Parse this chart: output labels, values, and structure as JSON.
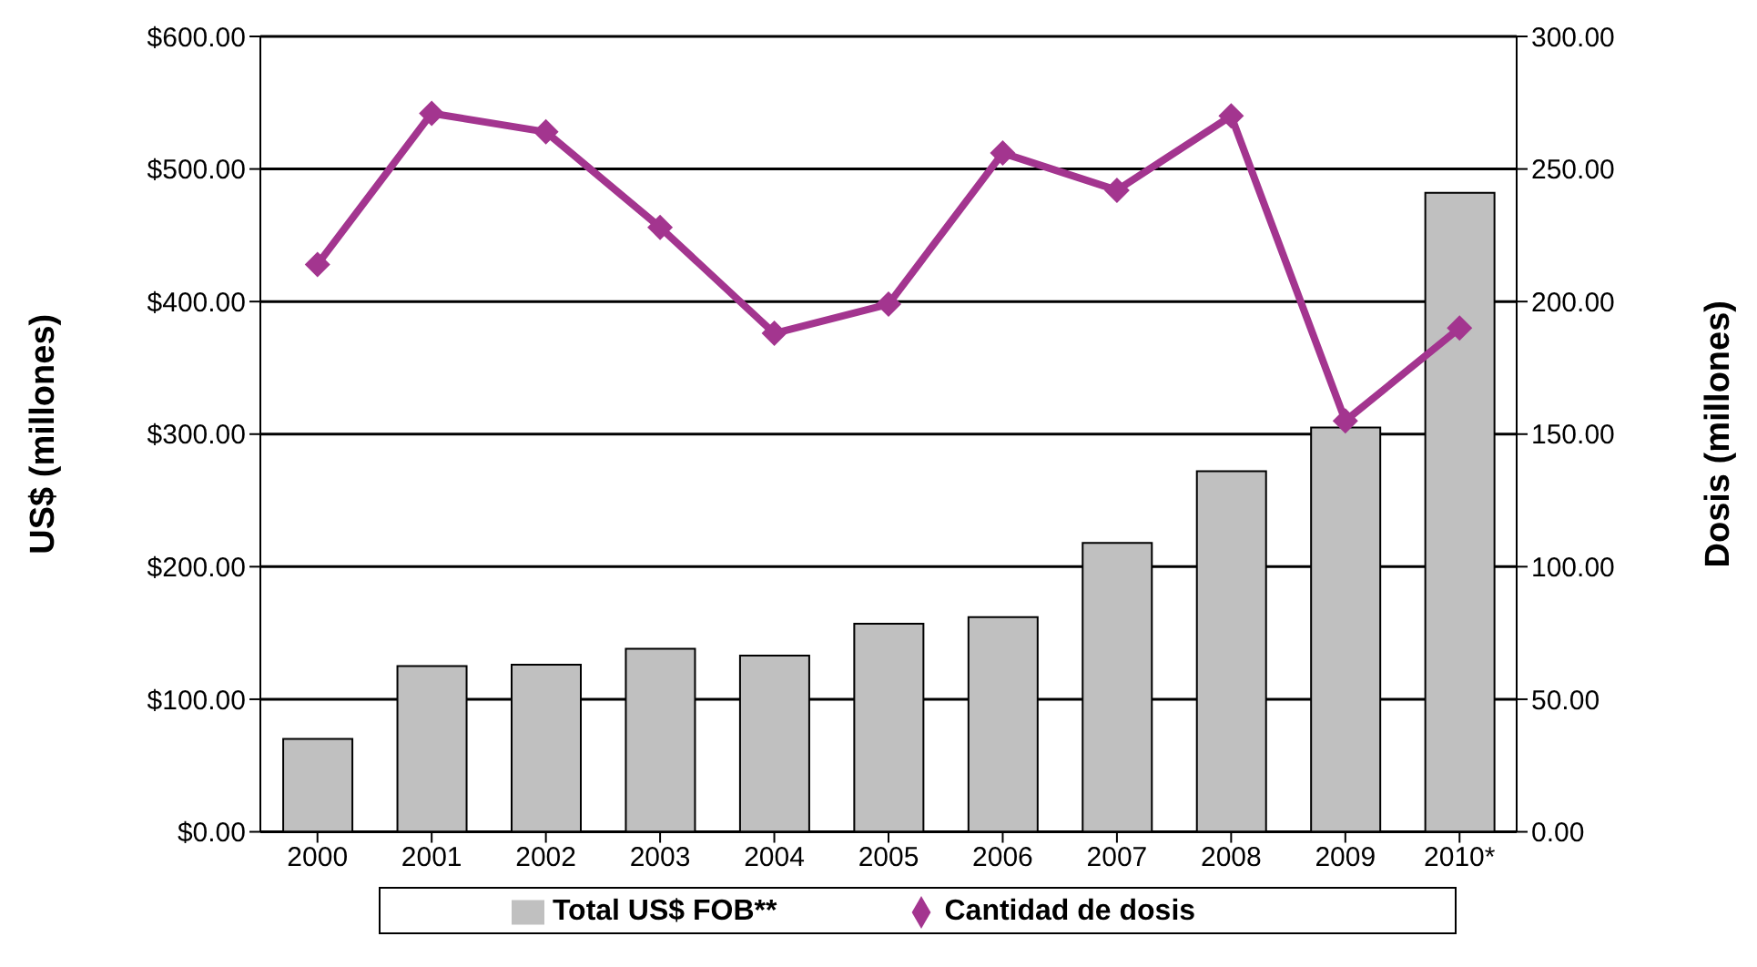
{
  "chart_data": {
    "type": "bar",
    "categories": [
      "2000",
      "2001",
      "2002",
      "2003",
      "2004",
      "2005",
      "2006",
      "2007",
      "2008",
      "2009",
      "2010*"
    ],
    "series": [
      {
        "name": "Total US$ FOB**",
        "color": "#c0c0c0",
        "values": [
          70,
          125,
          126,
          138,
          133,
          157,
          162,
          218,
          272,
          305,
          482
        ]
      },
      {
        "name": "Cantidad de dosis",
        "type": "line",
        "axis": "y2",
        "color": "#a3358f",
        "marker": "diamond",
        "values": [
          214,
          271,
          264,
          228,
          188,
          199,
          256,
          242,
          270,
          155,
          190
        ]
      }
    ],
    "ylabel": "US$ (millones)",
    "y2label": "Dosis (millones)",
    "ylim": [
      0,
      600
    ],
    "yticks": [
      {
        "value": 0,
        "label": "$0.00"
      },
      {
        "value": 100,
        "label": "$100.00"
      },
      {
        "value": 200,
        "label": "$200.00"
      },
      {
        "value": 300,
        "label": "$300.00"
      },
      {
        "value": 400,
        "label": "$400.00"
      },
      {
        "value": 500,
        "label": "$500.00"
      },
      {
        "value": 600,
        "label": "$600.00"
      }
    ],
    "y2lim": [
      0,
      300
    ],
    "y2ticks": [
      {
        "value": 0,
        "label": "0.00"
      },
      {
        "value": 50,
        "label": "50.00"
      },
      {
        "value": 100,
        "label": "100.00"
      },
      {
        "value": 150,
        "label": "150.00"
      },
      {
        "value": 200,
        "label": "200.00"
      },
      {
        "value": 250,
        "label": "250.00"
      },
      {
        "value": 300,
        "label": "300.00"
      }
    ],
    "grid": "y",
    "legend": "bottom"
  }
}
